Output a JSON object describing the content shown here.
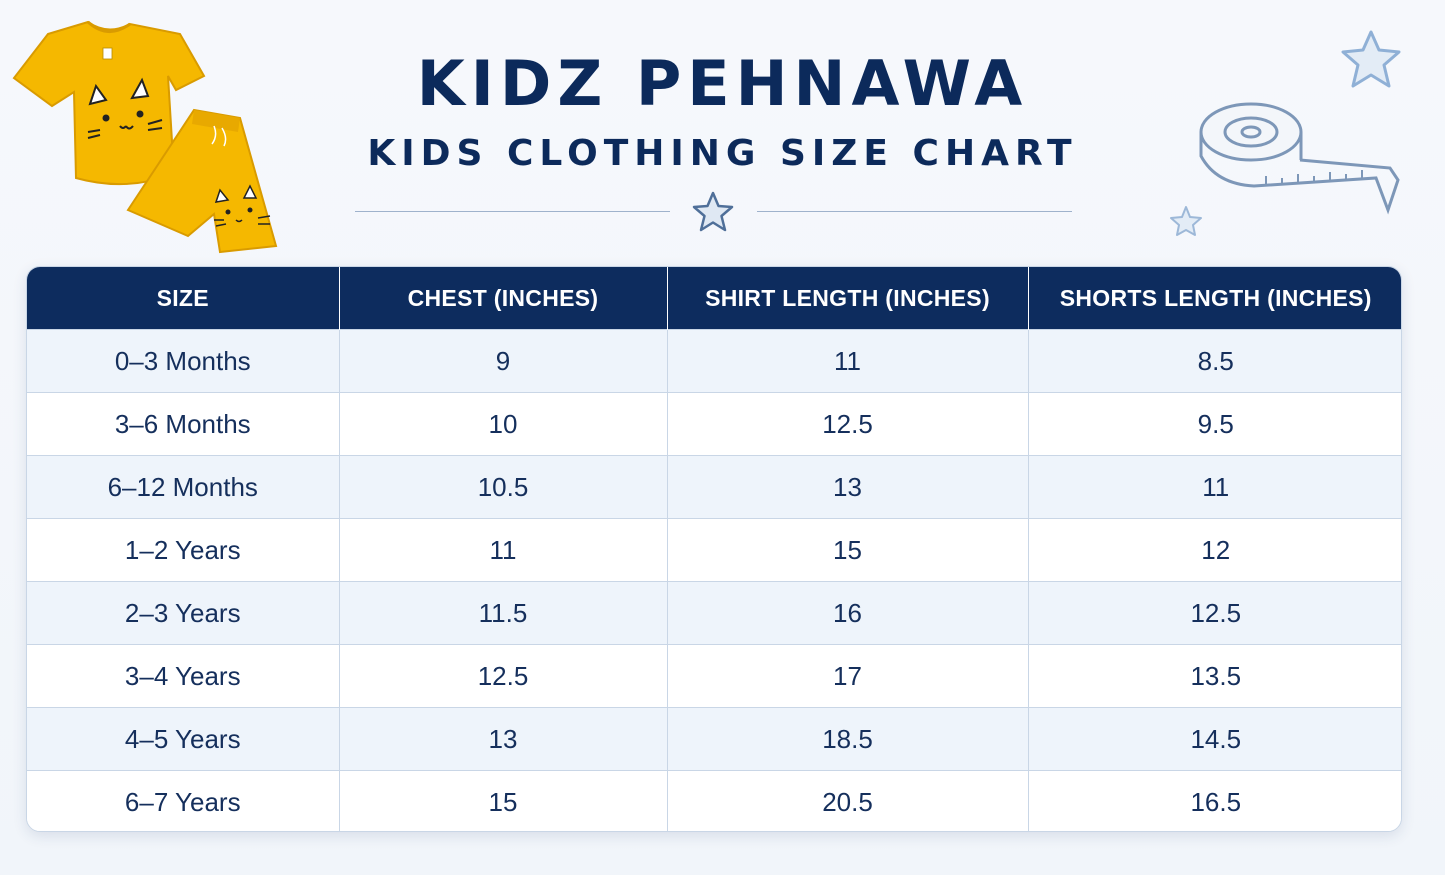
{
  "header": {
    "brand": "KIDZ PEHNAWA",
    "subtitle": "KIDS CLOTHING SIZE CHART"
  },
  "decorations": {
    "outfit_image": "yellow-cat-tshirt-shorts",
    "tape_icon": "measuring-tape-icon",
    "star_icon": "star-icon"
  },
  "colors": {
    "navy": "#0d2c5e",
    "row_alt": "#eef4fb",
    "outfit_yellow": "#f5b800"
  },
  "table": {
    "columns": [
      "SIZE",
      "CHEST (INCHES)",
      "SHIRT LENGTH (INCHES)",
      "SHORTS LENGTH (INCHES)"
    ],
    "rows": [
      [
        "0–3 Months",
        "9",
        "11",
        "8.5"
      ],
      [
        "3–6 Months",
        "10",
        "12.5",
        "9.5"
      ],
      [
        "6–12 Months",
        "10.5",
        "13",
        "11"
      ],
      [
        "1–2 Years",
        "11",
        "15",
        "12"
      ],
      [
        "2–3 Years",
        "11.5",
        "16",
        "12.5"
      ],
      [
        "3–4 Years",
        "12.5",
        "17",
        "13.5"
      ],
      [
        "4–5 Years",
        "13",
        "18.5",
        "14.5"
      ],
      [
        "6–7 Years",
        "15",
        "20.5",
        "16.5"
      ]
    ]
  }
}
